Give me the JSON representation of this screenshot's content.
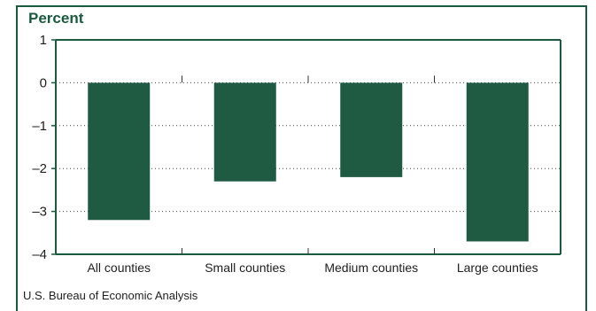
{
  "header": {
    "unit_label": "Percent"
  },
  "footer": {
    "source": "U.S. Bureau of Economic Analysis"
  },
  "chart_data": {
    "type": "bar",
    "title": "",
    "ylabel": "Percent",
    "xlabel": "",
    "categories": [
      "All counties",
      "Small counties",
      "Medium counties",
      "Large counties"
    ],
    "values": [
      -3.2,
      -2.3,
      -2.2,
      -3.7
    ],
    "ylim": [
      -4,
      1
    ],
    "yticks": [
      1,
      0,
      -1,
      -2,
      -3,
      -4
    ],
    "ytick_labels": [
      "1",
      "0",
      "–1",
      "–2",
      "–3",
      "–4"
    ],
    "grid": "dotted horizontal",
    "bar_color": "#1f5a43",
    "axis_color": "#1a5a3e"
  }
}
